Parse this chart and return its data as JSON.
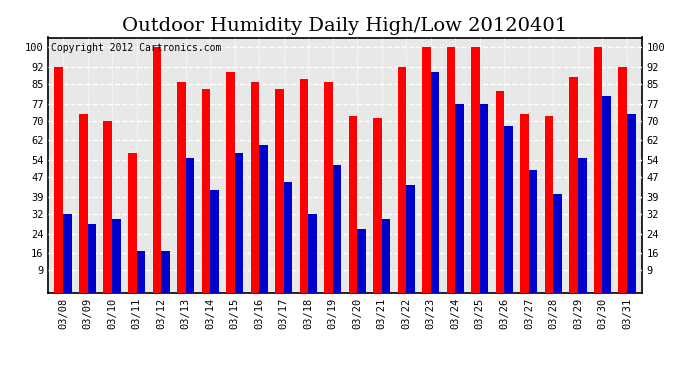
{
  "title": "Outdoor Humidity Daily High/Low 20120401",
  "copyright": "Copyright 2012 Cartronics.com",
  "dates": [
    "03/08",
    "03/09",
    "03/10",
    "03/11",
    "03/12",
    "03/13",
    "03/14",
    "03/15",
    "03/16",
    "03/17",
    "03/18",
    "03/19",
    "03/20",
    "03/21",
    "03/22",
    "03/23",
    "03/24",
    "03/25",
    "03/26",
    "03/27",
    "03/28",
    "03/29",
    "03/30",
    "03/31"
  ],
  "highs": [
    92,
    73,
    70,
    57,
    100,
    86,
    83,
    90,
    86,
    83,
    87,
    86,
    72,
    71,
    92,
    100,
    100,
    100,
    82,
    73,
    72,
    88,
    100,
    92
  ],
  "lows": [
    32,
    28,
    30,
    17,
    17,
    55,
    42,
    57,
    60,
    45,
    32,
    52,
    26,
    30,
    44,
    90,
    77,
    77,
    68,
    50,
    40,
    55,
    80,
    73
  ],
  "high_color": "#ff0000",
  "low_color": "#0000cc",
  "bg_color": "#ffffff",
  "plot_bg_color": "#e8e8e8",
  "grid_color": "#aaaaaa",
  "yticks": [
    9,
    16,
    24,
    32,
    39,
    47,
    54,
    62,
    70,
    77,
    85,
    92,
    100
  ],
  "ylim": [
    0,
    104
  ],
  "bar_width": 0.35,
  "title_fontsize": 14,
  "copyright_fontsize": 7,
  "tick_fontsize": 7.5,
  "dpi": 100,
  "figsize": [
    6.9,
    3.75
  ]
}
